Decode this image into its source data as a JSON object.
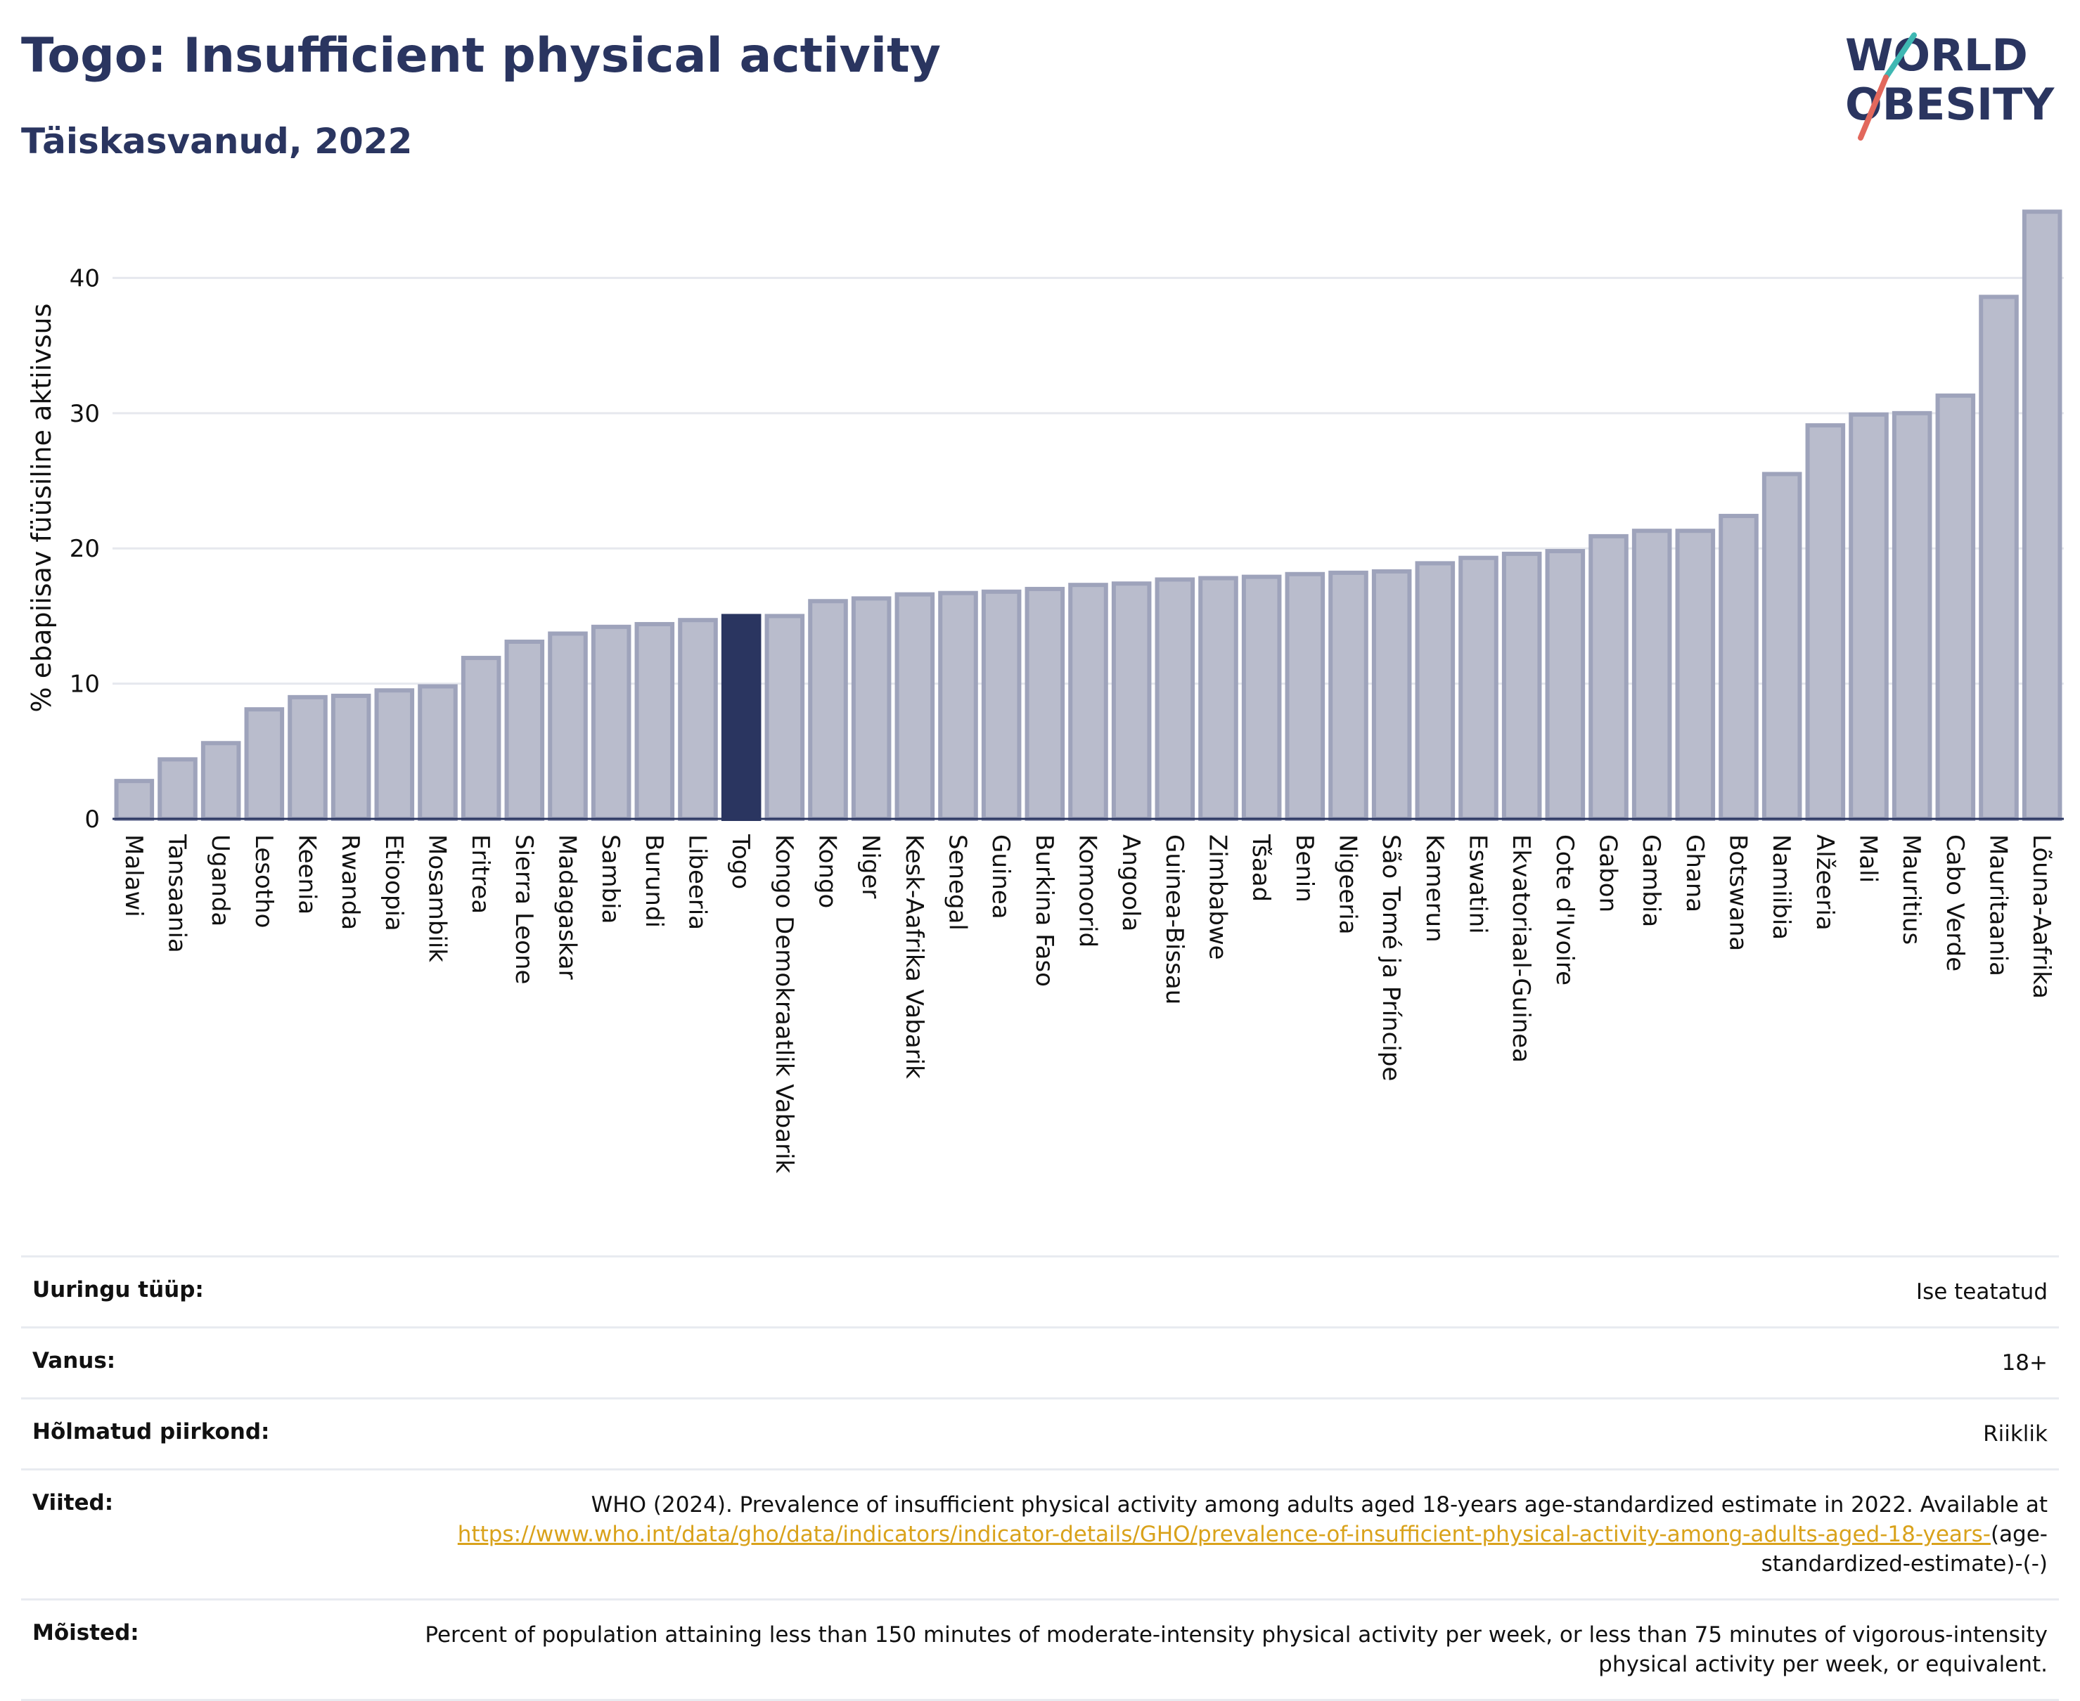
{
  "header": {
    "title": "Togo: Insufficient physical activity",
    "subtitle": "Täiskasvanud, 2022"
  },
  "logo": {
    "line1": "WORLD",
    "line2": "OBESITY"
  },
  "colors": {
    "bar": "#b9bccc",
    "bar_stroke": "#9ea3bb",
    "highlight": "#2a3560",
    "text": "#2a3560"
  },
  "chart_data": {
    "type": "bar",
    "ylabel": "% ebapiisav füüsiline aktiivsus",
    "xlabel": "",
    "ylim": [
      0,
      46
    ],
    "yticks": [
      0,
      10,
      20,
      30,
      40
    ],
    "grid": true,
    "highlight": "Togo",
    "categories": [
      "Malawi",
      "Tansaania",
      "Uganda",
      "Lesotho",
      "Keenia",
      "Rwanda",
      "Etioopia",
      "Mosambiik",
      "Eritrea",
      "Sierra Leone",
      "Madagaskar",
      "Sambia",
      "Burundi",
      "Libeeria",
      "Togo",
      "Kongo Demokraatlik Vabarik",
      "Kongo",
      "Niger",
      "Kesk-Aafrika Vabarik",
      "Senegal",
      "Guinea",
      "Burkina Faso",
      "Komoorid",
      "Angoola",
      "Guinea-Bissau",
      "Zimbabwe",
      "Tšaad",
      "Benin",
      "Nigeeria",
      "São Tomé ja Príncipe",
      "Kamerun",
      "Eswatini",
      "Ekvatoriaal-Guinea",
      "Cote d'Ivoire",
      "Gabon",
      "Gambia",
      "Ghana",
      "Botswana",
      "Namiibia",
      "Alžeeria",
      "Mali",
      "Mauritius",
      "Cabo Verde",
      "Mauritaania",
      "Lõuna-Aafrika"
    ],
    "values": [
      2.8,
      4.4,
      5.6,
      8.1,
      9.0,
      9.1,
      9.5,
      9.8,
      11.9,
      13.1,
      13.7,
      14.2,
      14.4,
      14.7,
      15.0,
      15.0,
      16.1,
      16.3,
      16.6,
      16.7,
      16.8,
      17.0,
      17.3,
      17.4,
      17.7,
      17.8,
      17.9,
      18.1,
      18.2,
      18.3,
      18.9,
      19.3,
      19.6,
      19.8,
      20.9,
      21.3,
      21.3,
      22.4,
      25.5,
      29.1,
      29.9,
      30.0,
      31.3,
      38.6,
      44.9
    ]
  },
  "meta": {
    "survey_type_label": "Uuringu tüüp:",
    "survey_type_value": "Ise teatatud",
    "age_label": "Vanus:",
    "age_value": "18+",
    "region_label": "Hõlmatud piirkond:",
    "region_value": "Riiklik",
    "refs_label": "Viited:",
    "refs_text": "WHO (2024). Prevalence of insufficient physical activity among adults aged 18-years age-standardized estimate in 2022. Available at",
    "refs_link": "https://www.who.int/data/gho/data/indicators/indicator-details/GHO/prevalence-of-insufficient-physical-activity-among-adults-aged-18-years-",
    "refs_tail": "(age-standardized-estimate)-(-)",
    "defs_label": "Mõisted:",
    "defs_text": "Percent of population attaining less than 150 minutes of moderate-intensity physical activity per week, or less than 75 minutes of vigorous-intensity physical activity per week, or equivalent."
  }
}
